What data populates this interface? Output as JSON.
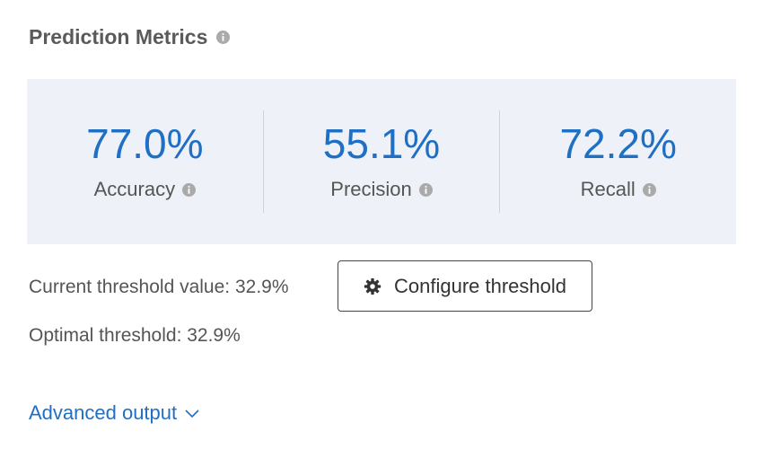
{
  "header": {
    "title": "Prediction Metrics"
  },
  "metrics": [
    {
      "value": "77.0%",
      "label": "Accuracy"
    },
    {
      "value": "55.1%",
      "label": "Precision"
    },
    {
      "value": "72.2%",
      "label": "Recall"
    }
  ],
  "threshold": {
    "current": "Current threshold value: 32.9%",
    "button": "Configure threshold",
    "optimal": "Optimal threshold: 32.9%"
  },
  "link": {
    "label": "Advanced output"
  }
}
